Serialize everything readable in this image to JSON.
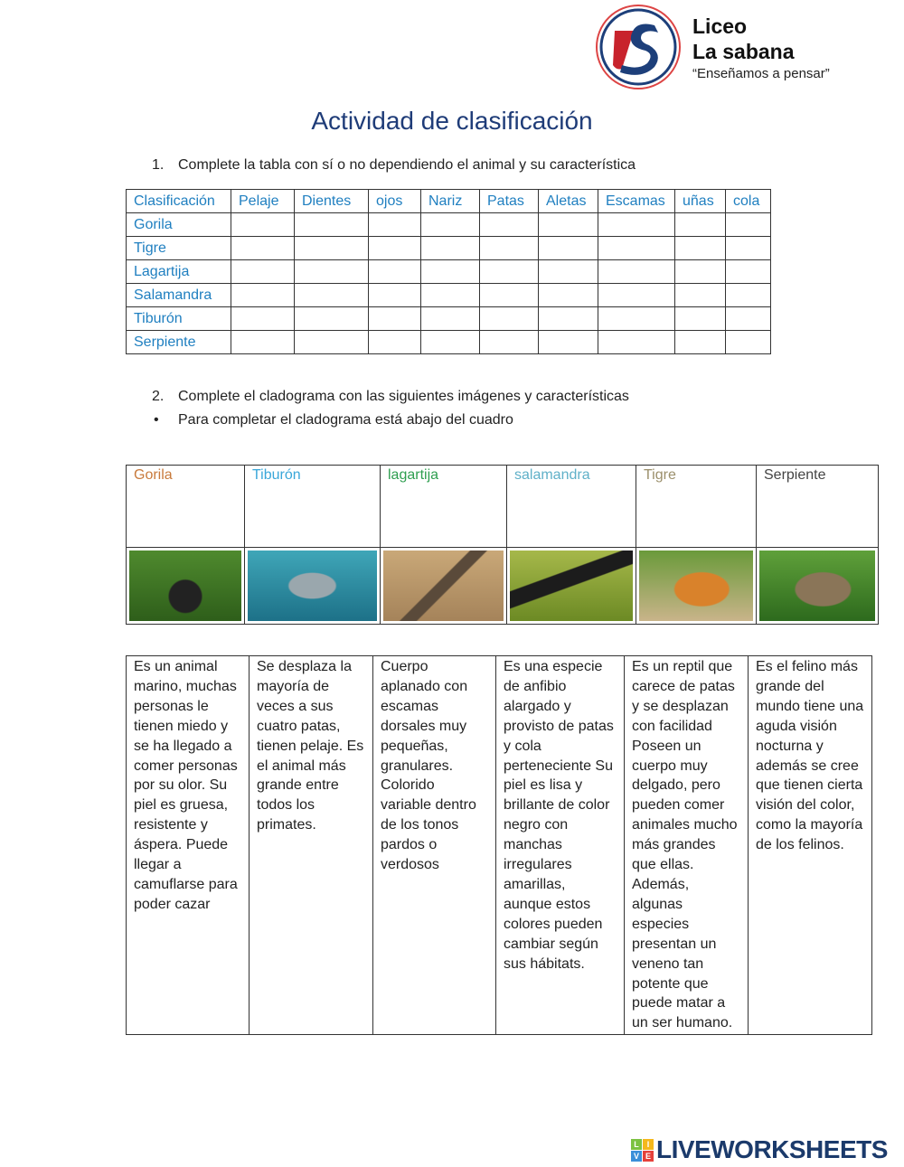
{
  "header": {
    "school_line1": "Liceo",
    "school_line2": "La sabana",
    "motto": "“Enseñamos a pensar”",
    "logo_letters": "LS"
  },
  "title": "Actividad de clasificación",
  "q1": {
    "number": "1.",
    "text": "Complete la tabla con sí o no dependiendo el animal y su característica"
  },
  "table1": {
    "headers": [
      "Clasificación",
      "Pelaje",
      "Dientes",
      "ojos",
      "Nariz",
      "Patas",
      "Aletas",
      "Escamas",
      "uñas",
      "cola"
    ],
    "rows": [
      "Gorila",
      "Tigre",
      "Lagartija",
      "Salamandra",
      "Tiburón",
      "Serpiente"
    ],
    "text_color": "#1f7fc0"
  },
  "q2": {
    "number": "2.",
    "text": "Complete el cladograma con las siguientes imágenes y características",
    "bullet": "•",
    "bullet_text": "Para completar el cladograma está abajo del cuadro"
  },
  "table2": {
    "animals": [
      {
        "name": "Gorila",
        "color": "#c87a3c",
        "image": "gorilla-photo"
      },
      {
        "name": "Tiburón",
        "color": "#3aa7d9",
        "image": "shark-photo"
      },
      {
        "name": "lagartija",
        "color": "#2e9e4f",
        "image": "lizard-photo"
      },
      {
        "name": "salamandra",
        "color": "#5fb0c8",
        "image": "salamander-photo"
      },
      {
        "name": "Tigre",
        "color": "#9b8f6b",
        "image": "tiger-photo"
      },
      {
        "name": "Serpiente",
        "color": "#444444",
        "image": "snake-photo"
      }
    ]
  },
  "table3": {
    "descriptions": [
      "Es un animal marino, muchas personas le tienen miedo y se ha llegado a comer personas por su olor. Su piel es gruesa, resistente y áspera. Puede llegar a camuflarse para poder cazar",
      "Se desplaza la mayoría de veces a sus cuatro patas, tienen pelaje. Es el animal más grande entre todos los primates.",
      "Cuerpo aplanado con escamas dorsales muy pequeñas, granulares. Colorido variable dentro de los tonos pardos o verdosos",
      "Es una especie de anfibio alargado y provisto de patas y cola perteneciente Su piel es lisa y brillante de color negro con manchas irregulares amarillas, aunque estos colores pueden cambiar según sus hábitats.",
      "Es un reptil que carece de patas y se desplazan con facilidad Poseen un cuerpo muy delgado, pero pueden comer animales mucho más grandes que ellas. Además, algunas especies presentan un veneno tan potente que puede matar a un ser humano.",
      "Es el felino más grande del mundo tiene una aguda visión nocturna y además se cree que tienen cierta visión del color, como la mayoría de los felinos."
    ]
  },
  "footer": {
    "brand": "LIVEWORKSHEETS",
    "badge": [
      "L",
      "I",
      "V",
      "E"
    ]
  }
}
